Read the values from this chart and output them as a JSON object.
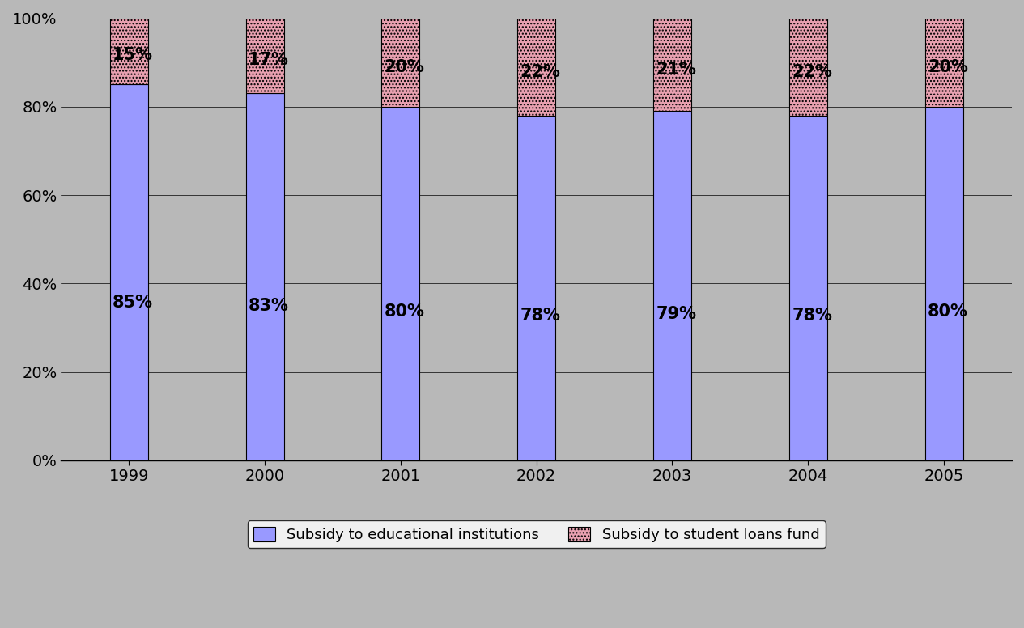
{
  "years": [
    "1999",
    "2000",
    "2001",
    "2002",
    "2003",
    "2004",
    "2005"
  ],
  "subsidy_institutions": [
    85,
    83,
    80,
    78,
    79,
    78,
    80
  ],
  "subsidy_loans": [
    15,
    17,
    20,
    22,
    21,
    22,
    20
  ],
  "bar_color_institutions": "#9999ff",
  "bar_color_loans_fill": "#e8a0b0",
  "background_color": "#b8b8b8",
  "plot_bg_color": "#b8b8b8",
  "ylim": [
    0,
    100
  ],
  "ytick_labels": [
    "0%",
    "20%",
    "40%",
    "60%",
    "80%",
    "100%"
  ],
  "ytick_values": [
    0,
    20,
    40,
    60,
    80,
    100
  ],
  "legend_label_1": "Subsidy to educational institutions",
  "legend_label_2": "Subsidy to student loans fund",
  "bar_width": 0.28,
  "label_fontsize": 15,
  "tick_fontsize": 14,
  "legend_fontsize": 13
}
